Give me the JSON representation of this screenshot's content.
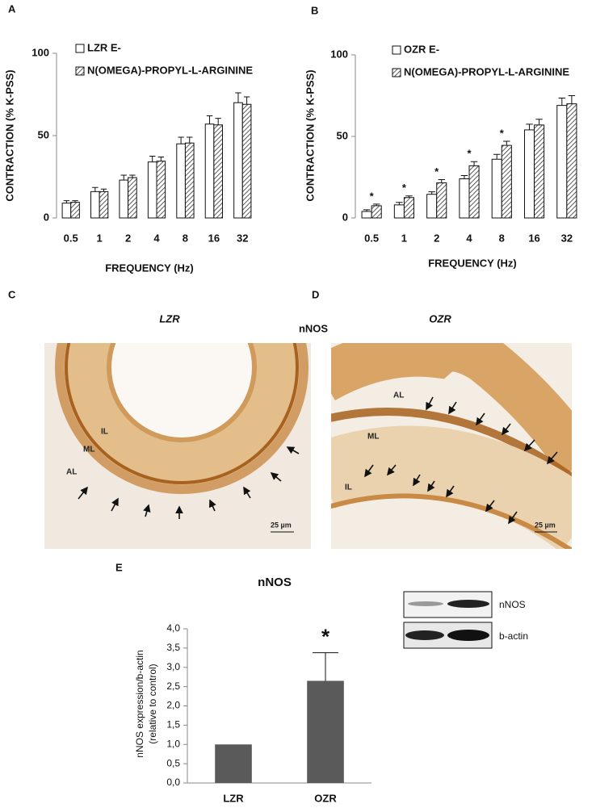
{
  "panel_labels": [
    "A",
    "B",
    "C",
    "D",
    "E"
  ],
  "chart_data": [
    {
      "type": "bar",
      "xlabel": "FREQUENCY (Hz)",
      "ylabel": "CONTRACTION (% K-PSS)",
      "categories": [
        "0.5",
        "1",
        "2",
        "4",
        "8",
        "16",
        "32"
      ],
      "series": [
        {
          "name": "LZR E-",
          "color": "#ffffff",
          "values": [
            9,
            16,
            23,
            34,
            45,
            57,
            70
          ],
          "errors": [
            1.5,
            2.5,
            3,
            3.5,
            4,
            5,
            6
          ]
        },
        {
          "name": "N(OMEGA)-PROPYL-L-ARGININE",
          "color": "#ffffff",
          "hatch": true,
          "values": [
            9.5,
            16,
            24.5,
            34.5,
            45.5,
            56.5,
            69
          ],
          "errors": [
            1,
            1.5,
            1.5,
            2.5,
            3.5,
            4,
            4.5
          ]
        }
      ],
      "ylim": [
        0,
        100
      ],
      "yticks": [
        0,
        50,
        100
      ]
    },
    {
      "type": "bar",
      "xlabel": "FREQUENCY (Hz)",
      "ylabel": "CONTRACTION (% K-PSS)",
      "categories": [
        "0.5",
        "1",
        "2",
        "4",
        "8",
        "16",
        "32"
      ],
      "series": [
        {
          "name": "OZR E-",
          "color": "#ffffff",
          "values": [
            4,
            8,
            14.5,
            24,
            36,
            54,
            69
          ],
          "errors": [
            1,
            1.5,
            1.5,
            2,
            3,
            3.5,
            4.5
          ]
        },
        {
          "name": "N(OMEGA)-PROPYL-L-ARGININE",
          "color": "#ffffff",
          "hatch": true,
          "values": [
            7.5,
            12.5,
            21.5,
            32,
            44.5,
            57,
            70
          ],
          "errors": [
            1,
            1,
            2,
            2.5,
            2.5,
            3.5,
            5
          ]
        }
      ],
      "significance": [
        "*",
        "*",
        "*",
        "*",
        "*",
        null,
        null
      ],
      "ylim": [
        0,
        100
      ],
      "yticks": [
        0,
        50,
        100
      ]
    },
    {
      "type": "bar",
      "title": "nNOS",
      "ylabel": [
        "nNOS expression/b-actin",
        "(relative to control)"
      ],
      "categories": [
        "LZR",
        "OZR"
      ],
      "series": [
        {
          "color": "#5a5a5a",
          "values": [
            1.0,
            2.65
          ],
          "errors": [
            null,
            0.73
          ]
        }
      ],
      "significance": [
        null,
        "*"
      ],
      "ylim": [
        0,
        4
      ],
      "yticks": [
        {
          "value": 0,
          "label": "0,0"
        },
        {
          "value": 0.5,
          "label": "0,5"
        },
        {
          "value": 1,
          "label": "1,0"
        },
        {
          "value": 1.5,
          "label": "1,5"
        },
        {
          "value": 2,
          "label": "2,0"
        },
        {
          "value": 2.5,
          "label": "2,5"
        },
        {
          "value": 3,
          "label": "3,0"
        },
        {
          "value": 3.5,
          "label": "3,5"
        },
        {
          "value": 4,
          "label": "4,0"
        }
      ]
    }
  ],
  "histology": {
    "title": "nNOS",
    "images": [
      {
        "title": "LZR",
        "labels": [
          "IL",
          "ML",
          "AL"
        ],
        "scale": "25 µm"
      },
      {
        "title": "OZR",
        "labels": [
          "AL",
          "ML",
          "IL"
        ],
        "scale": "25 µm"
      }
    ]
  },
  "blot": {
    "labels": [
      "nNOS",
      "b-actin"
    ]
  }
}
